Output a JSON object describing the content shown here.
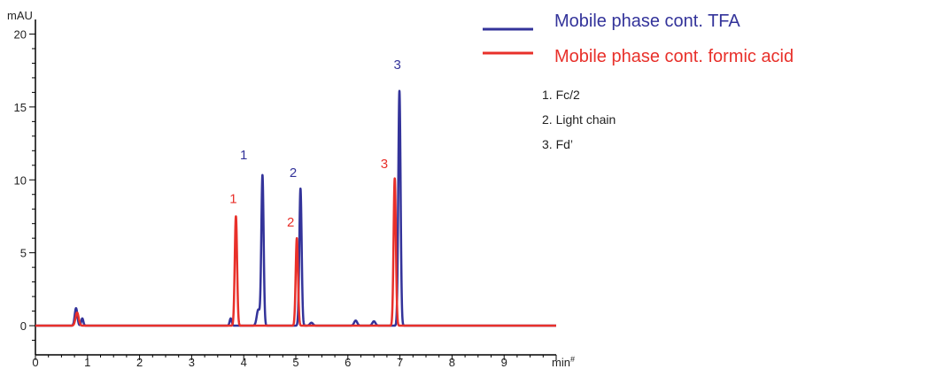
{
  "chart_data": {
    "type": "line",
    "y_unit": "mAU",
    "x_unit": "min",
    "x_unit_mark": "#",
    "xlim": [
      0,
      10
    ],
    "ylim": [
      -2,
      21
    ],
    "x_ticks": [
      "0",
      "1",
      "2",
      "3",
      "4",
      "5",
      "6",
      "7",
      "8",
      "9"
    ],
    "y_ticks": [
      "0",
      "5",
      "10",
      "15",
      "20"
    ],
    "x_tick_values": [
      0,
      1,
      2,
      3,
      4,
      5,
      6,
      7,
      8,
      9
    ],
    "y_tick_values": [
      0,
      5,
      10,
      15,
      20
    ],
    "grid": false,
    "legend_position": "top-right",
    "series": [
      {
        "name": "Mobile phase cont. TFA",
        "color": "#33339a",
        "baseline": 0,
        "end_x": 10,
        "peaks": [
          {
            "x": 0.78,
            "height": 1.2,
            "width": 0.025
          },
          {
            "x": 0.9,
            "height": 0.5,
            "width": 0.02
          },
          {
            "x": 3.75,
            "height": 0.5,
            "width": 0.02
          },
          {
            "x": 4.28,
            "height": 1.1,
            "width": 0.03
          },
          {
            "x": 4.36,
            "height": 10.3,
            "width": 0.022
          },
          {
            "x": 5.09,
            "height": 9.4,
            "width": 0.022
          },
          {
            "x": 5.3,
            "height": 0.2,
            "width": 0.03
          },
          {
            "x": 6.15,
            "height": 0.35,
            "width": 0.03
          },
          {
            "x": 6.5,
            "height": 0.3,
            "width": 0.03
          },
          {
            "x": 6.99,
            "height": 16.1,
            "width": 0.022
          }
        ],
        "labels": [
          {
            "text": "1",
            "x": 4.0,
            "y": 11.4
          },
          {
            "text": "2",
            "x": 4.95,
            "y": 10.2
          },
          {
            "text": "3",
            "x": 6.95,
            "y": 17.6
          }
        ]
      },
      {
        "name": "Mobile phase cont. formic acid",
        "color": "#e8302a",
        "baseline": 0,
        "end_x": 10,
        "peaks": [
          {
            "x": 0.8,
            "height": 0.9,
            "width": 0.03
          },
          {
            "x": 3.85,
            "height": 7.5,
            "width": 0.022
          },
          {
            "x": 5.02,
            "height": 6.0,
            "width": 0.022
          },
          {
            "x": 6.9,
            "height": 10.1,
            "width": 0.022
          }
        ],
        "labels": [
          {
            "text": "1",
            "x": 3.8,
            "y": 8.4
          },
          {
            "text": "2",
            "x": 4.9,
            "y": 6.8
          },
          {
            "text": "3",
            "x": 6.7,
            "y": 10.8
          }
        ]
      }
    ],
    "annotations": [
      "1.  Fc/2",
      "2.  Light chain",
      "3.  Fd’"
    ]
  }
}
